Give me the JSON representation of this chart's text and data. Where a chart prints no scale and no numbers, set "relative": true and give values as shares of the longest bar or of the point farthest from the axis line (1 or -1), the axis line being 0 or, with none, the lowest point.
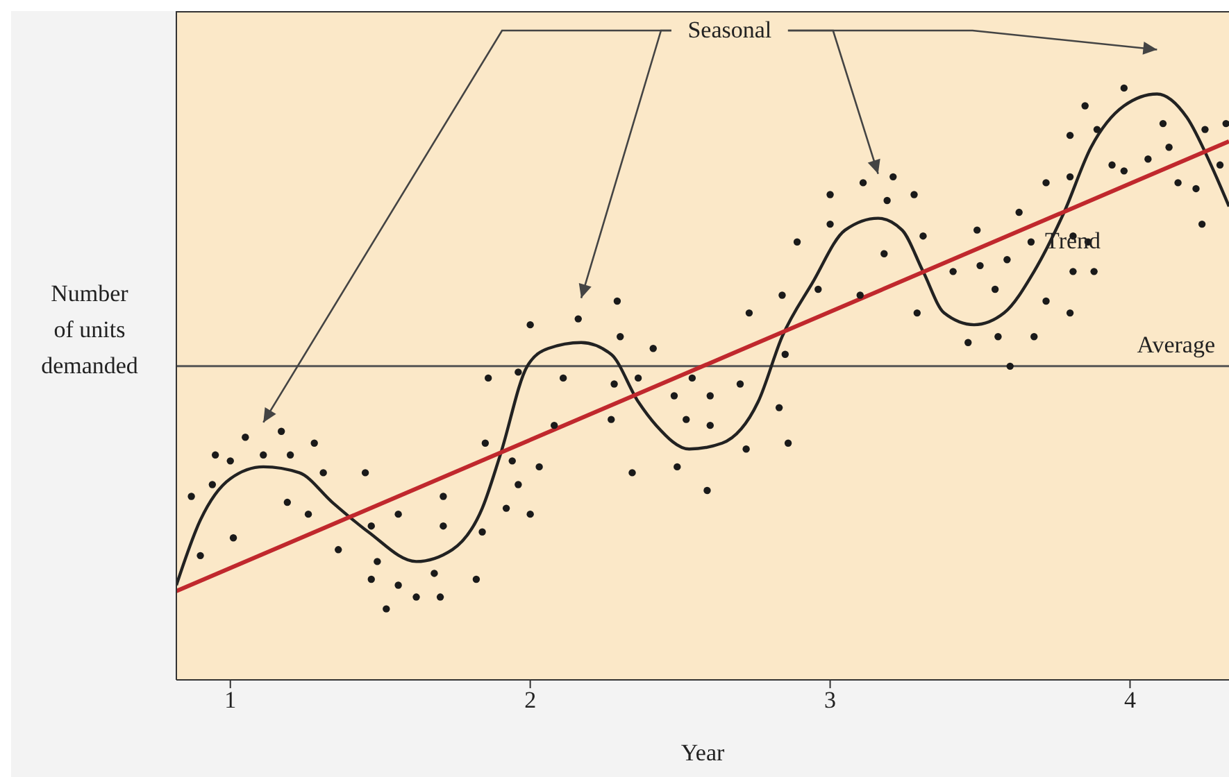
{
  "chart_data": {
    "type": "scatter",
    "xlabel": "Year",
    "ylabel": "Number of units demanded",
    "relative": true,
    "xlim": [
      0.82,
      4.33
    ],
    "xticks": [
      1,
      2,
      3,
      4
    ],
    "grid": false,
    "series": [
      {
        "color": "#1a1a1a",
        "marker": "circle",
        "x": [
          0.87,
          0.9,
          0.94,
          0.95,
          1.0,
          1.01,
          1.05,
          1.11,
          1.17,
          1.2,
          1.19,
          1.26,
          1.28,
          1.31,
          1.36,
          1.45,
          1.47,
          1.49,
          1.47,
          1.52,
          1.56,
          1.56,
          1.62,
          1.7,
          1.68,
          1.71,
          1.71,
          1.82,
          1.84,
          1.85,
          1.86,
          1.92,
          1.96,
          1.94,
          1.96,
          2.0,
          2.0,
          2.03,
          2.08,
          2.11,
          2.16,
          2.29,
          2.3,
          2.28,
          2.27,
          2.34,
          2.36,
          2.41,
          2.48,
          2.52,
          2.49,
          2.54,
          2.6,
          2.6,
          2.59,
          2.7,
          2.72,
          2.73,
          2.83,
          2.84,
          2.85,
          2.86,
          2.96,
          2.89,
          3.0,
          3.0,
          3.1,
          3.11,
          3.19,
          3.21,
          3.18,
          3.28,
          3.31,
          3.29,
          3.41,
          3.46,
          3.49,
          3.5,
          3.55,
          3.56,
          3.59,
          3.6,
          3.63,
          3.67,
          3.68,
          3.72,
          3.72,
          3.8,
          3.8,
          3.8,
          3.81,
          3.81,
          3.86,
          3.88,
          3.85,
          3.89,
          3.94,
          3.98,
          3.98,
          4.06,
          4.11,
          4.13,
          4.16,
          4.22,
          4.24,
          4.25,
          4.3,
          4.32
        ],
        "values": [
          0.31,
          0.21,
          0.33,
          0.38,
          0.37,
          0.24,
          0.41,
          0.38,
          0.42,
          0.38,
          0.3,
          0.28,
          0.4,
          0.35,
          0.22,
          0.35,
          0.26,
          0.2,
          0.17,
          0.12,
          0.16,
          0.28,
          0.14,
          0.14,
          0.18,
          0.26,
          0.31,
          0.17,
          0.25,
          0.4,
          0.51,
          0.29,
          0.33,
          0.37,
          0.52,
          0.6,
          0.28,
          0.36,
          0.43,
          0.51,
          0.61,
          0.64,
          0.58,
          0.5,
          0.44,
          0.35,
          0.51,
          0.56,
          0.48,
          0.44,
          0.36,
          0.51,
          0.48,
          0.43,
          0.32,
          0.5,
          0.39,
          0.62,
          0.46,
          0.65,
          0.55,
          0.4,
          0.66,
          0.74,
          0.77,
          0.82,
          0.65,
          0.84,
          0.81,
          0.85,
          0.72,
          0.82,
          0.75,
          0.62,
          0.69,
          0.57,
          0.76,
          0.7,
          0.66,
          0.58,
          0.71,
          0.53,
          0.79,
          0.74,
          0.58,
          0.84,
          0.64,
          0.85,
          0.92,
          0.62,
          0.75,
          0.69,
          0.74,
          0.69,
          0.97,
          0.93,
          0.87,
          1.0,
          0.86,
          0.88,
          0.94,
          0.9,
          0.84,
          0.83,
          0.77,
          0.93,
          0.87,
          0.94
        ]
      },
      {
        "type": "line",
        "name": "Seasonal",
        "color": "#222222",
        "x": [
          0.82,
          0.9,
          1.0,
          1.11,
          1.23,
          1.34,
          1.46,
          1.62,
          1.74,
          1.84,
          1.9,
          1.99,
          2.06,
          2.17,
          2.27,
          2.36,
          2.42,
          2.53,
          2.64,
          2.76,
          2.84,
          2.94,
          3.05,
          3.16,
          3.24,
          3.31,
          3.38,
          3.48,
          3.58,
          3.68,
          3.78,
          3.87,
          3.98,
          4.09,
          4.19,
          4.27,
          4.33
        ],
        "values": [
          0.16,
          0.27,
          0.34,
          0.36,
          0.35,
          0.3,
          0.25,
          0.2,
          0.22,
          0.29,
          0.38,
          0.53,
          0.56,
          0.57,
          0.55,
          0.47,
          0.43,
          0.39,
          0.4,
          0.47,
          0.58,
          0.67,
          0.76,
          0.78,
          0.76,
          0.69,
          0.62,
          0.6,
          0.62,
          0.69,
          0.79,
          0.9,
          0.97,
          0.99,
          0.95,
          0.87,
          0.8
        ]
      },
      {
        "type": "line",
        "name": "Trend",
        "color": "#c0282d",
        "x": [
          0.82,
          4.33
        ],
        "values": [
          0.15,
          0.91
        ]
      }
    ],
    "ref_lines": [
      {
        "axis": "y",
        "value": 0.53,
        "label": "Average",
        "color": "#555555"
      }
    ]
  }
}
